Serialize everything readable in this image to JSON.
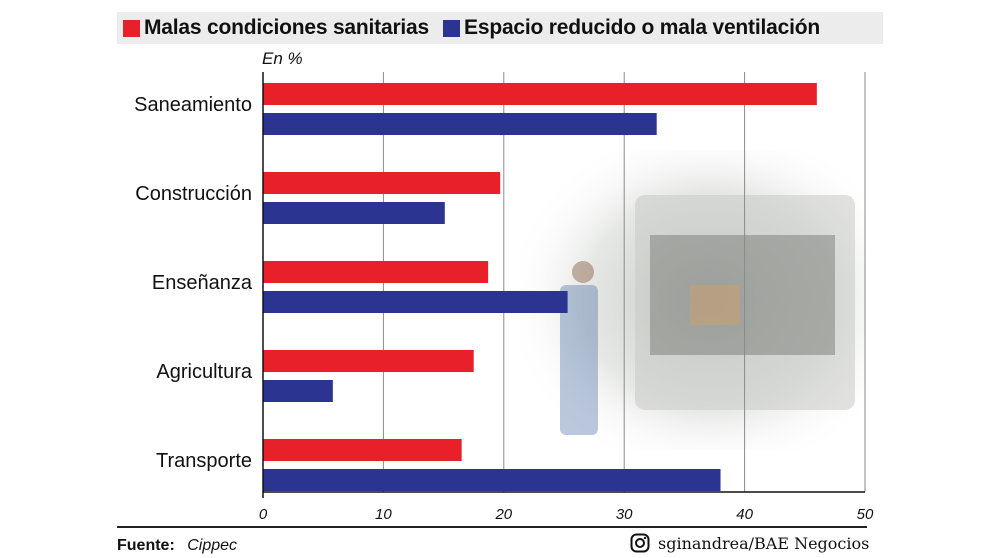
{
  "legend": [
    {
      "label": "Malas condiciones sanitarias",
      "color": "#e8202a"
    },
    {
      "label": "Espacio reducido o mala ventilación",
      "color": "#2b3591"
    }
  ],
  "unit_label": "En %",
  "chart_data": {
    "type": "bar",
    "orientation": "horizontal",
    "categories": [
      "Saneamiento",
      "Construcción",
      "Enseñanza",
      "Agricultura",
      "Transporte"
    ],
    "series": [
      {
        "name": "Malas condiciones sanitarias",
        "values": [
          46,
          19.7,
          18.7,
          17.5,
          16.5
        ],
        "color": "#e8202a"
      },
      {
        "name": "Espacio reducido o mala ventilación",
        "values": [
          32.7,
          15.1,
          25.3,
          5.8,
          38
        ],
        "color": "#2b3591"
      }
    ],
    "xlim": [
      0,
      50
    ],
    "xticks": [
      0,
      10,
      20,
      30,
      40,
      50
    ],
    "grid": true,
    "legend_position": "top"
  },
  "footer": {
    "source_label": "Fuente:",
    "source_value": "Cippec",
    "credit": "sginandrea/BAE Negocios",
    "credit_icon": "instagram-icon"
  }
}
